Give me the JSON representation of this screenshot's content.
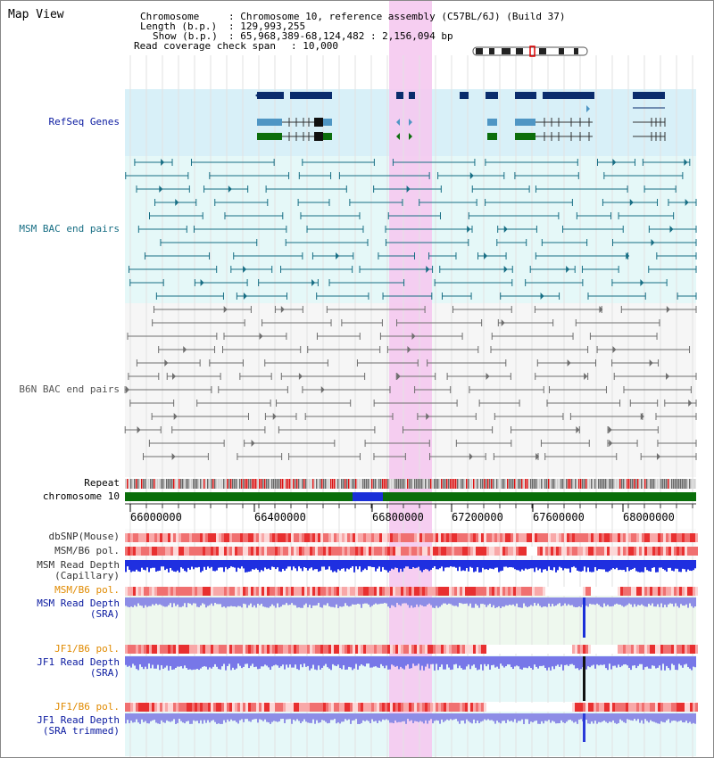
{
  "title": "Map View",
  "header": {
    "chromosome_key": "Chromosome",
    "chromosome_val": ": Chromosome 10, reference assembly (C57BL/6J) (Build 37)",
    "length_key": "Length (b.p.)",
    "length_val": ": 129,993,255",
    "show_key": "Show (b.p.)",
    "show_val": ": 65,968,389-68,124,482 : 2,156,094 bp",
    "coverage_key": "Read coverage check span",
    "coverage_val": ": 10,000"
  },
  "tracks": {
    "refseq": "RefSeq Genes",
    "msm_bac": "MSM BAC end pairs",
    "b6n_bac": "B6N BAC end pairs",
    "repeat": "Repeat",
    "chromosome": "chromosome 10",
    "dbsnp": "dbSNP(Mouse)",
    "msm_pol": "MSM/B6 pol.",
    "msm_depth_cap_1": "MSM Read Depth",
    "msm_depth_cap_2": "(Capillary)",
    "msm_pol_sra": "MSM/B6 pol.",
    "msm_depth_sra_1": "MSM Read Depth",
    "msm_depth_sra_2": "(SRA)",
    "jf1_pol_1": "JF1/B6 pol.",
    "jf1_depth_1": "JF1 Read Depth",
    "jf1_depth_1b": "(SRA)",
    "jf1_pol_2": "JF1/B6 pol.",
    "jf1_depth_2": "JF1 Read Depth",
    "jf1_depth_2b": "(SRA trimmed)"
  },
  "axis": {
    "ticks": [
      "66000000",
      "66400000",
      "66800000",
      "67200000",
      "67600000",
      "68000000"
    ]
  },
  "colors": {
    "gene_dark": "#0a2c6c",
    "gene_mid": "#4f96c4",
    "gene_green": "#0c6e0c",
    "msm_bac": "#176e84",
    "b6n_bac": "#6e6e6e",
    "highlight": "#f5c9ef",
    "refseq_bg": "#d8f0f8",
    "msm_bg": "#e5f8f8",
    "chrom": "#0a6e0a",
    "label_blue": "#0a1aa0",
    "label_orange": "#e08a00",
    "label_teal": "#176e84"
  }
}
